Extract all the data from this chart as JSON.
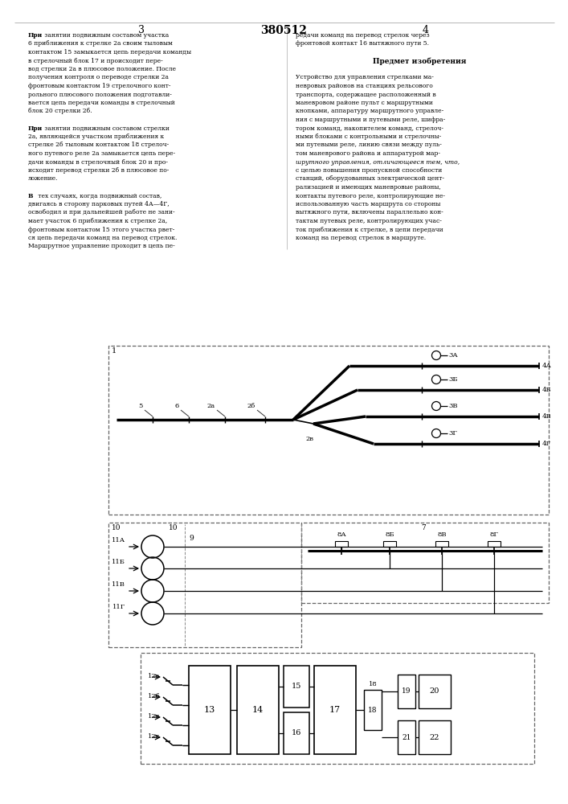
{
  "title": "380512",
  "page_left": "3",
  "page_right": "4",
  "bg_color": "#ffffff",
  "left_text": [
    "При занятии подвижным составом участка",
    "6 приближения к стрелке 2а своим тыловым",
    "контактом 15 замыкается цепь передачи команды",
    "в стрелочный блок 17 и происходит пере-",
    "вод стрелки 2а в плюсовое положение. После",
    "получения контроля о переводе стрелки 2а",
    "фронтовым контактом 19 стрелочного конт-",
    "рольного плюсового положения подготавли-",
    "вается цепь передачи команды в стрелочный",
    "блок 20 стрелки 2б.",
    "",
    "При занятии подвижным составом стрелки",
    "2а, являющейся участком приближения к",
    "стрелке 2б тыловым контактом 18 стрелоч-",
    "ного путевого реле 2а замыкается цепь пере-",
    "дачи команды в стрелочный блок 20 и про-",
    "исходит перевод стрелки 2б в плюсовое по-",
    "ложение.",
    "",
    "В тех случаях, когда подвижный состав,",
    "двигаясь в сторону парковых путей 4А—4Г,",
    "освободил и при дальнейшей работе не зани-",
    "мает участок 6 приближения к стрелке 2а,",
    "фронтовым контактом 15 этого участка рвет-",
    "ся цепь передачи команд на перевод стрелок.",
    "Маршрутное управление проходит в цепь пе-"
  ],
  "right_text": [
    "редачи команд на перевод стрелок через",
    "фронтовой контакт 16 вытяжного пути 5.",
    "",
    "Предмет изобретения",
    "",
    "Устройство для управления стрелками ма-",
    "невровых районов на станциях рельсового",
    "транспорта, содержащее расположенный в",
    "маневровом районе пульт с маршрутными",
    "кнопками, аппаратуру маршрутного управле-",
    "ния с маршрутными и путевыми реле, шифра-",
    "тором команд, накопителем команд, стрелоч-",
    "ными блоками с контрольными и стрелочны-",
    "ми путевыми реле, линию связи между пуль-",
    "том маневрового района и аппаратурой мар-",
    "шрутного управления, отличающееся тем, что,",
    "с целью повышения пропускной способности",
    "станций, оборудованных электрической цент-",
    "рализацией и имеющих маневровые районы,",
    "контакты путевого реле, контролирующие не-",
    "использованную часть маршрута со стороны",
    "вытяжного пути, включены параллельно кон-",
    "тактам путевых реле, контролирующих учас-",
    "ток приближения к стрелке, в цепи передачи",
    "команд на перевод стрелок в маршруте."
  ]
}
